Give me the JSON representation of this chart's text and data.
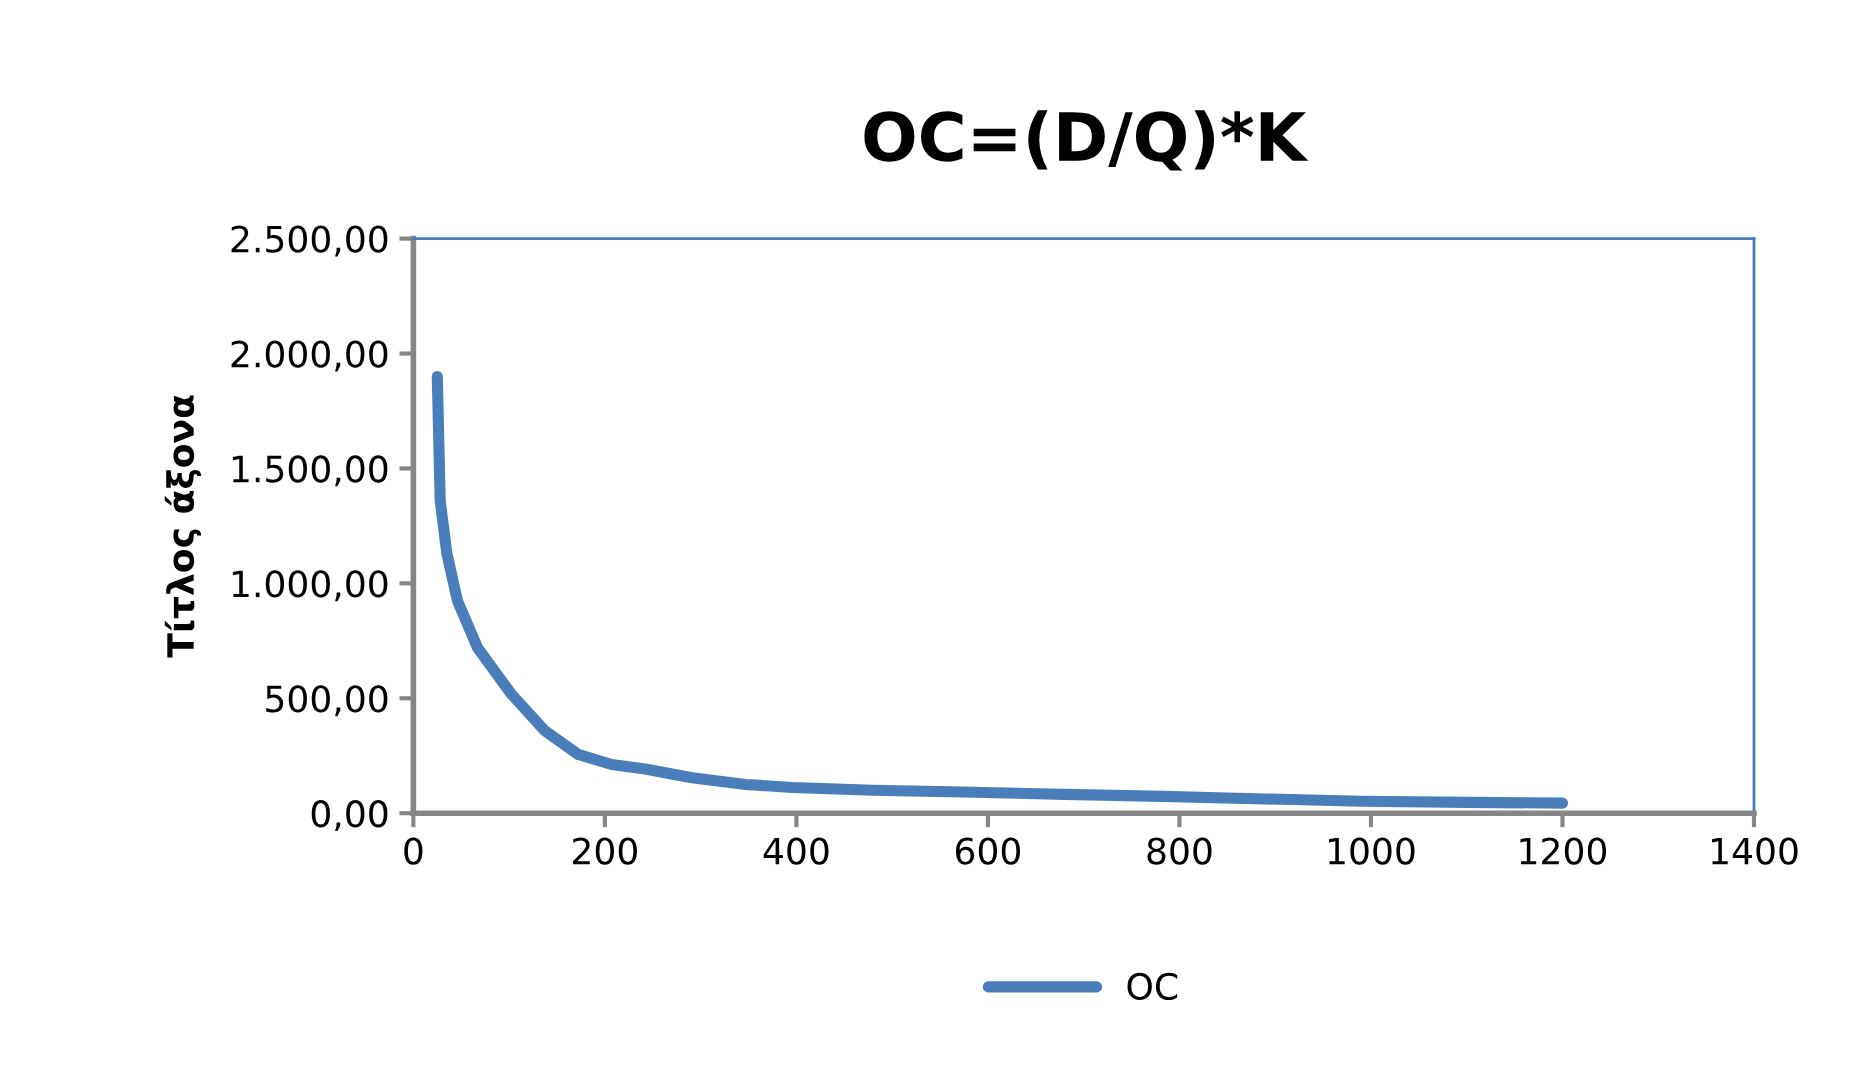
{
  "chart_data": {
    "type": "line",
    "title": "OC=(D/Q)*K",
    "ylabel": "Τίτλος άξονα",
    "x": [
      25,
      28,
      35,
      46,
      67,
      102,
      137,
      172,
      207,
      242,
      291,
      347,
      396,
      480,
      573,
      680,
      782,
      890,
      991,
      1100,
      1200
    ],
    "series": [
      {
        "name": "OC",
        "color": "#4a7ebb",
        "values": [
          1900,
          1360,
          1130,
          925,
          720,
          520,
          360,
          256,
          212,
          192,
          154,
          125,
          112,
          100,
          92,
          82,
          73,
          62,
          52,
          47,
          44
        ]
      }
    ],
    "xlim": [
      0,
      1400
    ],
    "xticks": [
      0,
      200,
      400,
      600,
      800,
      1000,
      1200,
      1400
    ],
    "ylim": [
      0,
      2500
    ],
    "yticks": [
      {
        "value": 0,
        "label": "0,00"
      },
      {
        "value": 500,
        "label": "500,00"
      },
      {
        "value": 1000,
        "label": "1.000,00"
      },
      {
        "value": 1500,
        "label": "1.500,00"
      },
      {
        "value": 2000,
        "label": "2.000,00"
      },
      {
        "value": 2500,
        "label": "2.500,00"
      }
    ],
    "grid": false,
    "legend": "bottom",
    "marker": "none",
    "line_style": "solid"
  }
}
